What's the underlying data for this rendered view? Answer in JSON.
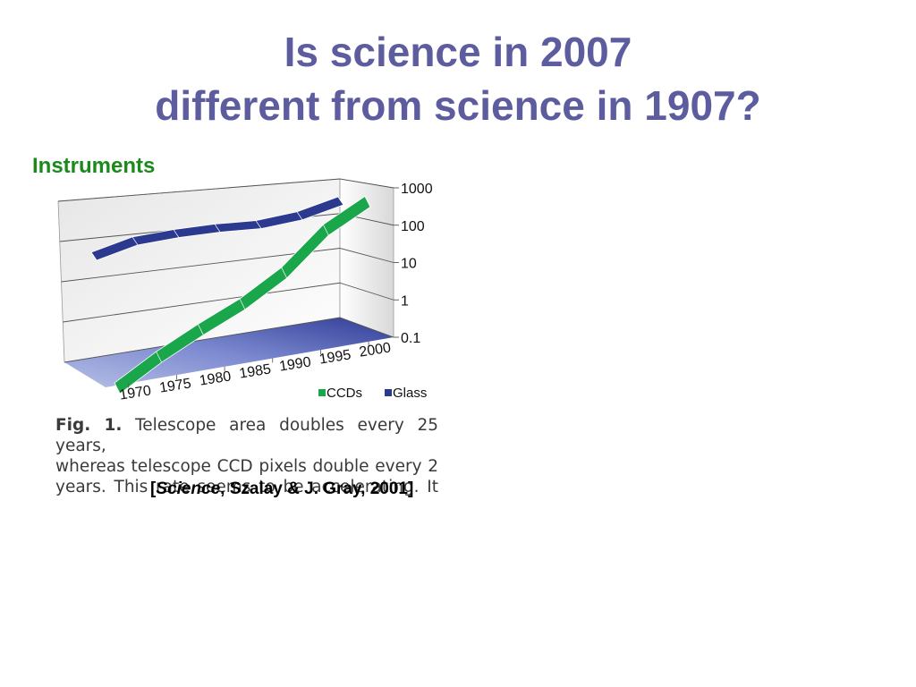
{
  "title": {
    "line1": "Is science in 2007",
    "line2": "different from science in 1907?"
  },
  "section_label": "Instruments",
  "caption": {
    "fig_label": "Fig. 1.",
    "lines": [
      " Telescope area doubles every 25 years,",
      "whereas telescope CCD pixels double every 2",
      "years. This rate seems to be accelerating. It"
    ]
  },
  "citation": {
    "open": "[",
    "journal": "Science",
    "rest": ", Szalay & J. Gray, 2001]"
  },
  "colors": {
    "title": "#5c5c9e",
    "section": "#1a8a1a",
    "ccd": "#1aa64a",
    "glass": "#2b3a8f",
    "floor": "#3a4aa8"
  },
  "chart_data": {
    "type": "line",
    "subtype": "3d-ribbon",
    "y_scale": "log",
    "categories": [
      "1970",
      "1975",
      "1980",
      "1985",
      "1990",
      "1995",
      "2000"
    ],
    "y_ticks": [
      "1000",
      "100",
      "10",
      "1",
      "0.1"
    ],
    "ylim": [
      0.1,
      1000
    ],
    "grid": true,
    "legend_position": "bottom-right",
    "series": [
      {
        "name": "CCDs",
        "values": [
          0.07,
          0.25,
          0.8,
          2.5,
          12,
          130,
          700
        ]
      },
      {
        "name": "Glass",
        "values": [
          12,
          30,
          45,
          60,
          70,
          130,
          450
        ]
      }
    ]
  }
}
